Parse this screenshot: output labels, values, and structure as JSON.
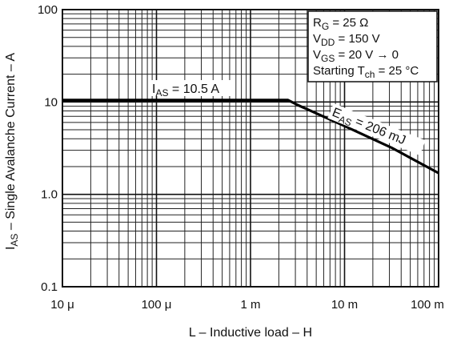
{
  "chart_data": {
    "type": "line",
    "xscale": "log",
    "yscale": "log",
    "xlim": [
      1e-05,
      0.1
    ],
    "ylim": [
      0.1,
      100
    ],
    "grid": true,
    "x_ticks": [
      {
        "value": 1e-05,
        "label": "10 μ"
      },
      {
        "value": 0.0001,
        "label": "100 μ"
      },
      {
        "value": 0.001,
        "label": "1 m"
      },
      {
        "value": 0.01,
        "label": "10 m"
      },
      {
        "value": 0.1,
        "label": "100 m"
      }
    ],
    "y_ticks": [
      {
        "value": 0.1,
        "label": "0.1"
      },
      {
        "value": 1,
        "label": "1.0"
      },
      {
        "value": 10,
        "label": "10"
      },
      {
        "value": 100,
        "label": "100"
      }
    ],
    "xlabel": "L – Inductive load – H",
    "ylabel": {
      "main": "I",
      "sub": "AS",
      "rest": " – Single Avalanche Current – A"
    },
    "series": [
      {
        "x": [
          1e-05,
          3.16e-05,
          0.0001,
          0.000316,
          0.001,
          0.0025,
          0.00316,
          0.01,
          0.0316,
          0.1
        ],
        "values": [
          10.5,
          10.5,
          10.5,
          10.5,
          10.5,
          10.5,
          9.3,
          5.5,
          3.2,
          1.7
        ]
      }
    ],
    "annotations": [
      {
        "id": "ias",
        "main": "I",
        "sub": "AS",
        "rest": " = 10.5 A"
      },
      {
        "id": "eas",
        "main": "E",
        "sub": "AS",
        "rest": " = 206 mJ"
      }
    ],
    "conditions_box": [
      {
        "main": "R",
        "sub": "G",
        "rest": " = 25 Ω"
      },
      {
        "main": "V",
        "sub": "DD",
        "rest": " = 150 V"
      },
      {
        "main": "V",
        "sub": "GS",
        "rest": " = 20 V → 0"
      },
      {
        "main": "Starting T",
        "sub": "ch",
        "rest": " = 25 °C"
      }
    ]
  }
}
